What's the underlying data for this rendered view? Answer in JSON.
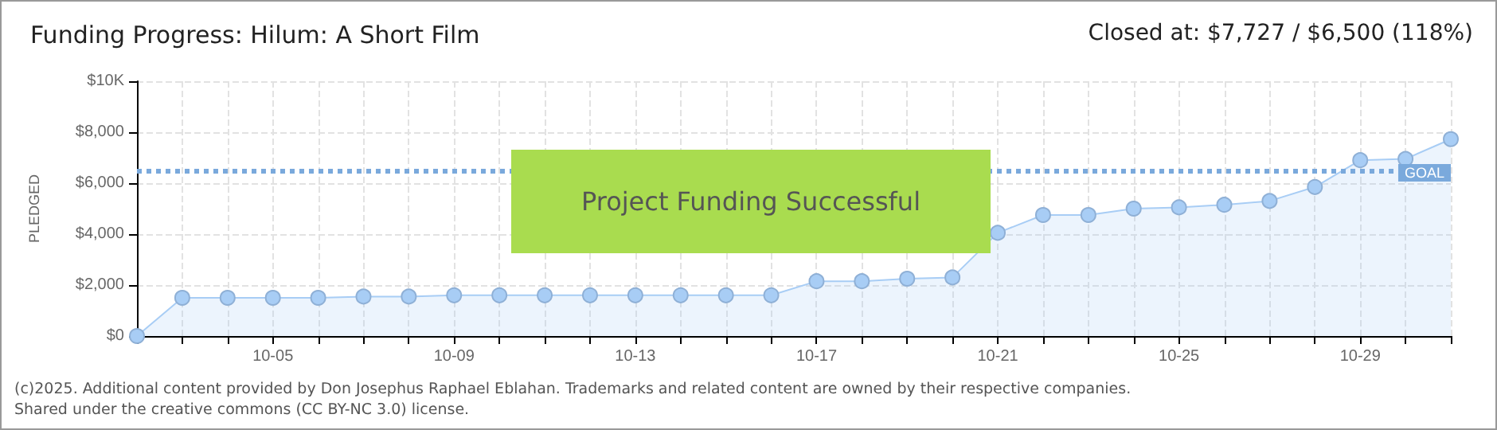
{
  "chart_data": {
    "type": "area",
    "title": "Funding Progress: Hilum: A Short Film",
    "subtitle": "Closed at: $7,727 / $6,500 (118%)",
    "ylabel": "PLEDGED",
    "categories": [
      null,
      null,
      null,
      "10-05",
      null,
      null,
      null,
      "10-09",
      null,
      null,
      null,
      "10-13",
      null,
      null,
      null,
      "10-17",
      null,
      null,
      null,
      "10-21",
      null,
      null,
      null,
      "10-25",
      null,
      null,
      null,
      "10-29",
      null,
      null
    ],
    "series": [
      {
        "color": "#a8cdf5",
        "values": [
          0,
          1500,
          1500,
          1500,
          1500,
          1550,
          1550,
          1600,
          1600,
          1600,
          1600,
          1600,
          1600,
          1600,
          1600,
          2150,
          2150,
          2250,
          2300,
          4050,
          4750,
          4750,
          5000,
          5050,
          5150,
          5300,
          5850,
          6900,
          6950,
          7727
        ]
      }
    ],
    "ylim": [
      0,
      10000
    ],
    "yticks": [
      {
        "value": 0,
        "label": "$0"
      },
      {
        "value": 2000,
        "label": "$2,000"
      },
      {
        "value": 4000,
        "label": "$4,000"
      },
      {
        "value": 6000,
        "label": "$6,000"
      },
      {
        "value": 8000,
        "label": "$8,000"
      },
      {
        "value": 10000,
        "label": "$10K"
      }
    ],
    "ref_lines": [
      {
        "axis": "y",
        "value": 6500,
        "label": "GOAL",
        "color": "#7aa9dc",
        "line_style": "dotted"
      }
    ],
    "annotations": [
      "Project Funding Successful",
      "(c)2025. Additional content provided by Don Josephus Raphael Eblahan. Trademarks and related content are owned by their respective companies.",
      "Shared under the creative commons (CC BY-NC 3.0) license."
    ],
    "grid": true,
    "marker": "circle"
  }
}
